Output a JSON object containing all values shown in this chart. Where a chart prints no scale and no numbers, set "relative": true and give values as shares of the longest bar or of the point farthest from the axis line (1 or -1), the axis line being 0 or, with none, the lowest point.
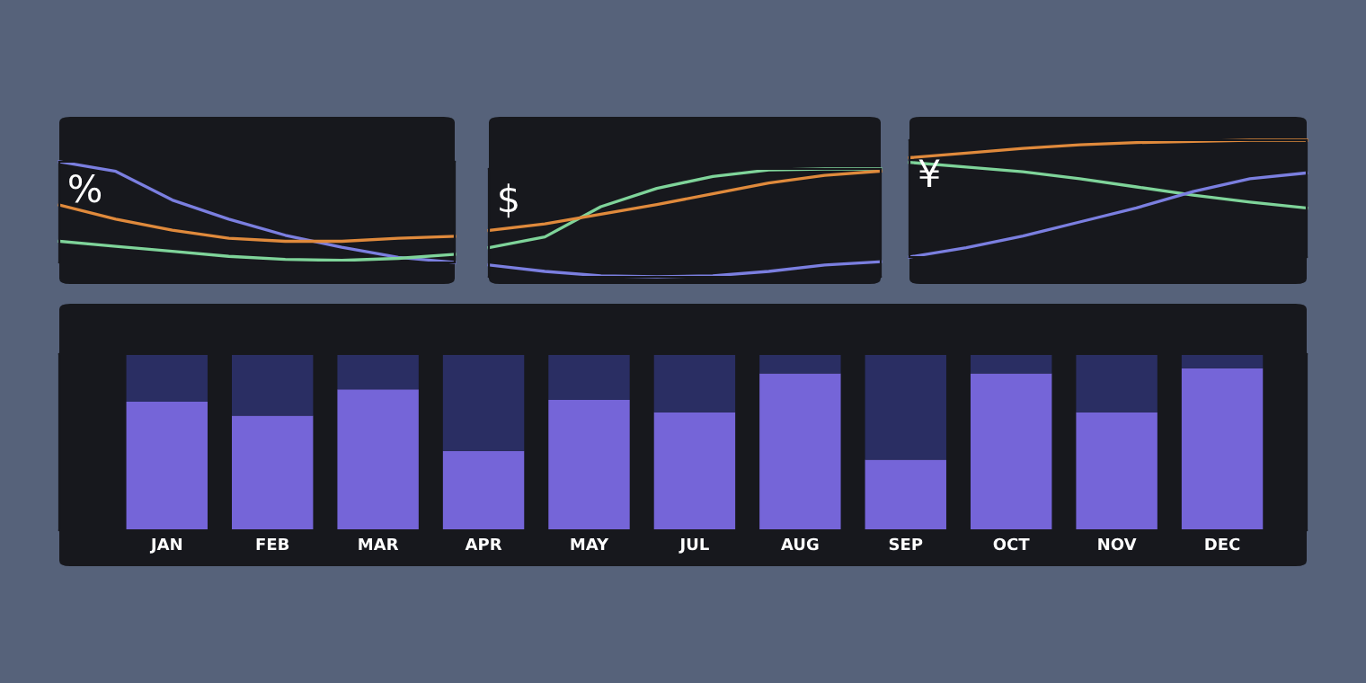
{
  "chart_data": [
    {
      "type": "line",
      "title": "%",
      "relative": true,
      "categories": [
        null,
        null,
        null,
        null,
        null,
        null,
        null,
        null
      ],
      "series": [
        {
          "color": "#7b7fe0",
          "values": [
            1,
            0.905,
            0.62,
            0.43,
            0.27,
            0.15,
            0.05,
            0
          ]
        },
        {
          "color": "#e08a3c",
          "values": [
            0.57,
            0.43,
            0.32,
            0.24,
            0.21,
            0.21,
            0.24,
            0.26
          ]
        },
        {
          "color": "#7fd49a",
          "values": [
            0.21,
            0.16,
            0.11,
            0.06,
            0.03,
            0.02,
            0.04,
            0.08
          ]
        }
      ]
    },
    {
      "type": "line",
      "title": "$",
      "relative": true,
      "categories": [
        null,
        null,
        null,
        null,
        null,
        null,
        null,
        null
      ],
      "series": [
        {
          "color": "#7fd49a",
          "values": [
            0.27,
            0.37,
            0.65,
            0.82,
            0.93,
            0.99,
            1,
            1
          ]
        },
        {
          "color": "#e08a3c",
          "values": [
            0.43,
            0.49,
            0.58,
            0.67,
            0.77,
            0.87,
            0.94,
            0.98
          ]
        },
        {
          "color": "#7b7fe0",
          "values": [
            0.11,
            0.05,
            0.01,
            0,
            0.01,
            0.05,
            0.11,
            0.14
          ]
        }
      ]
    },
    {
      "type": "line",
      "title": "¥",
      "relative": true,
      "categories": [
        null,
        null,
        null,
        null,
        null,
        null,
        null,
        null
      ],
      "series": [
        {
          "color": "#e08a3c",
          "values": [
            0.85,
            0.89,
            0.93,
            0.96,
            0.98,
            0.99,
            1,
            1
          ]
        },
        {
          "color": "#7fd49a",
          "values": [
            0.81,
            0.77,
            0.73,
            0.67,
            0.6,
            0.53,
            0.47,
            0.42
          ]
        },
        {
          "color": "#7b7fe0",
          "values": [
            0,
            0.08,
            0.18,
            0.3,
            0.42,
            0.56,
            0.67,
            0.72
          ]
        }
      ]
    },
    {
      "type": "bar",
      "stacked": true,
      "relative": true,
      "categories": [
        "JAN",
        "FEB",
        "MAR",
        "APR",
        "MAY",
        "JUL",
        "AUG",
        "SEP",
        "OCT",
        "NOV",
        "DEC"
      ],
      "series": [
        {
          "color": "#7565d8",
          "values": [
            0.73,
            0.65,
            0.8,
            0.45,
            0.74,
            0.67,
            0.89,
            0.4,
            0.89,
            0.67,
            0.92
          ]
        },
        {
          "color": "#2a2e63",
          "values": [
            0.27,
            0.35,
            0.2,
            0.55,
            0.26,
            0.33,
            0.11,
            0.6,
            0.11,
            0.33,
            0.08
          ]
        }
      ]
    }
  ]
}
